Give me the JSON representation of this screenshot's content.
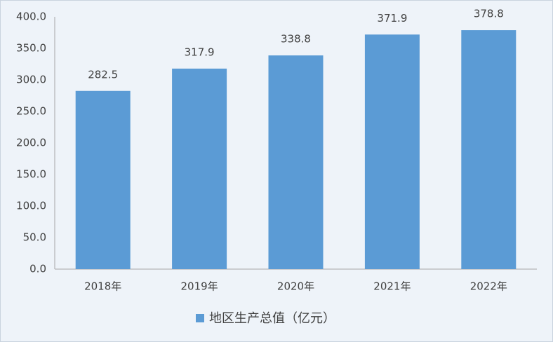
{
  "chart_data": {
    "type": "bar",
    "categories": [
      "2018年",
      "2019年",
      "2020年",
      "2021年",
      "2022年"
    ],
    "series": [
      {
        "name": "地区生产总值（亿元）",
        "color": "#5b9bd5",
        "values": [
          282.5,
          317.9,
          338.8,
          371.9,
          378.8
        ]
      }
    ],
    "ylim": [
      0,
      400
    ],
    "yticks": [
      {
        "value": 0,
        "label": "0.0"
      },
      {
        "value": 50,
        "label": "50.0"
      },
      {
        "value": 100,
        "label": "100.0"
      },
      {
        "value": 150,
        "label": "150.0"
      },
      {
        "value": 200,
        "label": "200.0"
      },
      {
        "value": 250,
        "label": "250.0"
      },
      {
        "value": 300,
        "label": "300.0"
      },
      {
        "value": 350,
        "label": "350.0"
      },
      {
        "value": 400,
        "label": "400.0"
      }
    ],
    "grid": false,
    "legend": "bottom"
  }
}
